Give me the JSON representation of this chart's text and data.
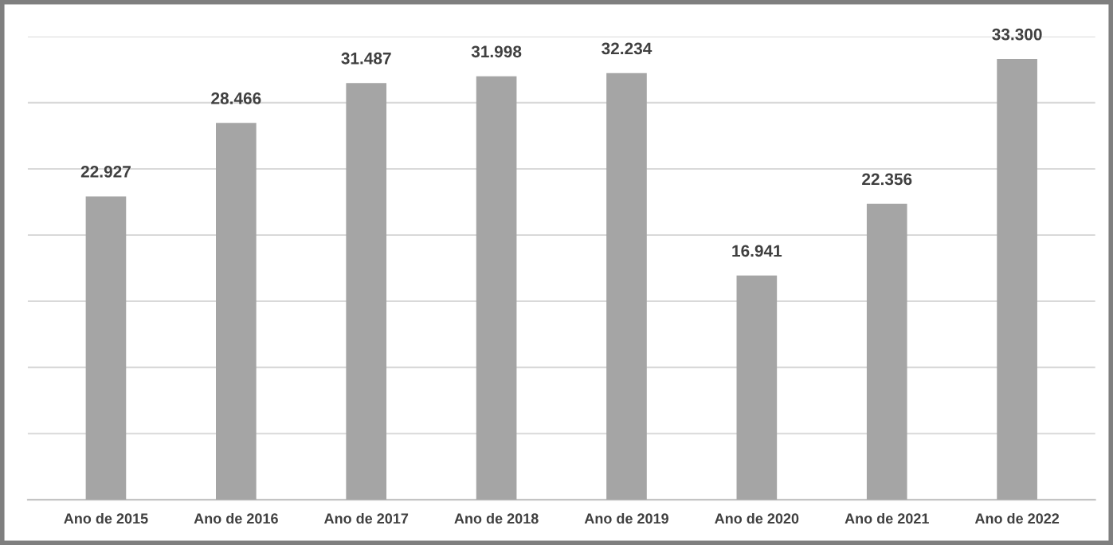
{
  "chart_data": {
    "type": "bar",
    "categories": [
      "Ano de 2015",
      "Ano de 2016",
      "Ano de 2017",
      "Ano de 2018",
      "Ano de 2019",
      "Ano de 2020",
      "Ano de 2021",
      "Ano de 2022"
    ],
    "values": [
      22927,
      28466,
      31487,
      31998,
      32234,
      16941,
      22356,
      33300
    ],
    "value_labels": [
      "22.927",
      "28.466",
      "31.487",
      "31.998",
      "32.234",
      "16.941",
      "22.356",
      "33.300"
    ],
    "color": "#a5a5a5",
    "ylim": [
      0,
      35000
    ],
    "yticks": [
      {
        "value": 0,
        "label": null
      },
      {
        "value": 5000,
        "label": null
      },
      {
        "value": 10000,
        "label": null
      },
      {
        "value": 15000,
        "label": null
      },
      {
        "value": 20000,
        "label": null
      },
      {
        "value": 25000,
        "label": null
      },
      {
        "value": 30000,
        "label": null
      },
      {
        "value": 35000,
        "label": null
      }
    ],
    "grid": "y",
    "tick_labels": "x"
  }
}
